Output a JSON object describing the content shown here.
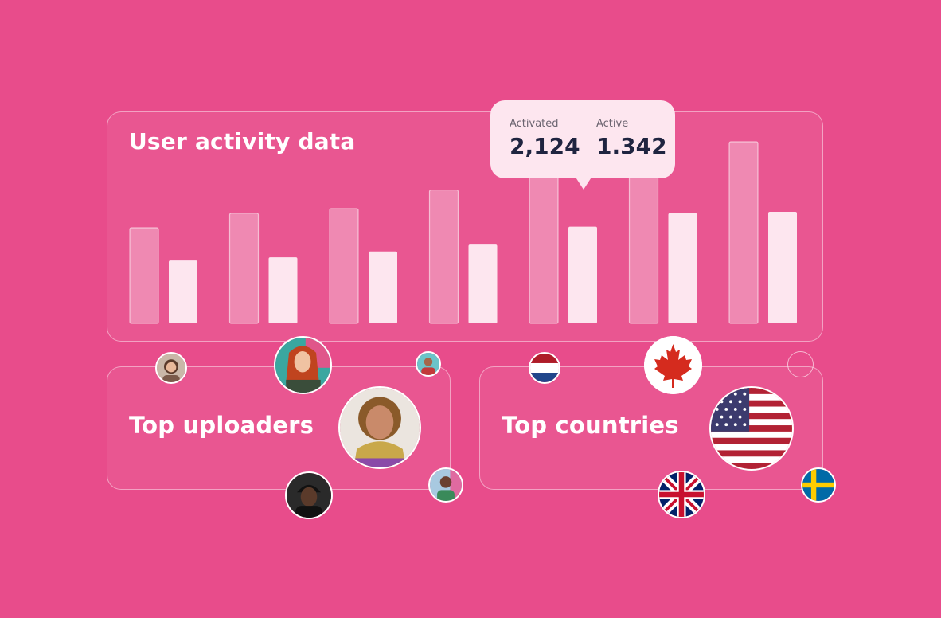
{
  "chart_data": {
    "type": "bar",
    "title": "User activity data",
    "series": [
      {
        "name": "Activated",
        "values": [
          2100,
          2420,
          2520,
          2930,
          3520,
          4010,
          3990
        ]
      },
      {
        "name": "Active",
        "values": [
          1380,
          1450,
          1580,
          1730,
          2124,
          2420,
          2450
        ]
      }
    ],
    "ylim": [
      0,
      4200
    ],
    "grid": false
  },
  "tooltip": {
    "activated_label": "Activated",
    "activated_value": "2,124",
    "active_label": "Active",
    "active_value": "1.342"
  },
  "uploaders": {
    "title": "Top uploaders"
  },
  "countries": {
    "title": "Top countries",
    "flags": [
      "netherlands-flag",
      "canada-flag",
      "usa-flag",
      "uk-flag",
      "sweden-flag"
    ]
  },
  "colors": {
    "background": "#e84c8b",
    "bar_light": "#fde6ef",
    "text_dark": "#1f2440"
  }
}
